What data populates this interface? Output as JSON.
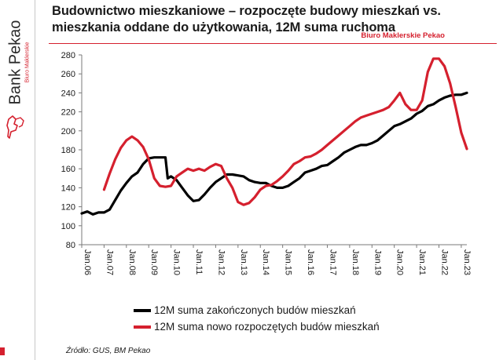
{
  "header": {
    "title_line1": "Budownictwo mieszkaniowe – rozpoczęte budowy mieszkań vs.",
    "title_line2": "mieszkania oddane do użytkowania, 12M suma ruchoma",
    "subbrand": "Biuro Maklerskie Pekao"
  },
  "sidebar": {
    "brand": "Bank Pekao",
    "brand_sub": "Biuro Maklerskie"
  },
  "colors": {
    "black_series": "#000000",
    "red_series": "#d5202e",
    "accent": "#d5202e"
  },
  "footer": {
    "source": "Źródło: GUS, BM Pekao"
  },
  "chart_data": {
    "type": "line",
    "title": "",
    "xlabel": "",
    "ylabel": "",
    "ylim": [
      80,
      280
    ],
    "yticks": [
      80,
      100,
      120,
      140,
      160,
      180,
      200,
      220,
      240,
      260,
      280
    ],
    "xlim": [
      2006.0,
      2023.25
    ],
    "xticks": [
      "Jan.06",
      "Jan.07",
      "Jan.08",
      "Jan.09",
      "Jan.10",
      "Jan.11",
      "Jan.12",
      "Jan.13",
      "Jan.14",
      "Jan.15",
      "Jan.16",
      "Jan.17",
      "Jan.18",
      "Jan.19",
      "Jan.20",
      "Jan.21",
      "Jan.22",
      "Jan.23"
    ],
    "grid": false,
    "legend_position": "bottom",
    "series": [
      {
        "name": "12M suma zakończonych budów mieszkań",
        "color": "#000000",
        "points": [
          [
            2006.0,
            113
          ],
          [
            2006.25,
            115
          ],
          [
            2006.5,
            112
          ],
          [
            2006.75,
            114
          ],
          [
            2007.0,
            114
          ],
          [
            2007.25,
            117
          ],
          [
            2007.5,
            127
          ],
          [
            2007.75,
            137
          ],
          [
            2008.0,
            145
          ],
          [
            2008.25,
            152
          ],
          [
            2008.5,
            156
          ],
          [
            2008.75,
            165
          ],
          [
            2009.0,
            171
          ],
          [
            2009.25,
            172
          ],
          [
            2009.5,
            172
          ],
          [
            2009.75,
            172
          ],
          [
            2009.85,
            150
          ],
          [
            2010.0,
            152
          ],
          [
            2010.25,
            148
          ],
          [
            2010.5,
            140
          ],
          [
            2010.75,
            132
          ],
          [
            2011.0,
            126
          ],
          [
            2011.25,
            127
          ],
          [
            2011.5,
            133
          ],
          [
            2011.75,
            140
          ],
          [
            2012.0,
            146
          ],
          [
            2012.25,
            150
          ],
          [
            2012.5,
            154
          ],
          [
            2012.75,
            154
          ],
          [
            2013.0,
            153
          ],
          [
            2013.25,
            152
          ],
          [
            2013.5,
            148
          ],
          [
            2013.75,
            146
          ],
          [
            2014.0,
            145
          ],
          [
            2014.25,
            145
          ],
          [
            2014.5,
            142
          ],
          [
            2014.75,
            140
          ],
          [
            2015.0,
            140
          ],
          [
            2015.25,
            142
          ],
          [
            2015.5,
            146
          ],
          [
            2015.75,
            150
          ],
          [
            2016.0,
            156
          ],
          [
            2016.25,
            158
          ],
          [
            2016.5,
            160
          ],
          [
            2016.75,
            163
          ],
          [
            2017.0,
            164
          ],
          [
            2017.25,
            168
          ],
          [
            2017.5,
            172
          ],
          [
            2017.75,
            177
          ],
          [
            2018.0,
            180
          ],
          [
            2018.25,
            183
          ],
          [
            2018.5,
            185
          ],
          [
            2018.75,
            185
          ],
          [
            2019.0,
            187
          ],
          [
            2019.25,
            190
          ],
          [
            2019.5,
            195
          ],
          [
            2019.75,
            200
          ],
          [
            2020.0,
            205
          ],
          [
            2020.25,
            207
          ],
          [
            2020.5,
            210
          ],
          [
            2020.75,
            213
          ],
          [
            2021.0,
            218
          ],
          [
            2021.25,
            221
          ],
          [
            2021.5,
            226
          ],
          [
            2021.75,
            228
          ],
          [
            2022.0,
            232
          ],
          [
            2022.25,
            235
          ],
          [
            2022.5,
            237
          ],
          [
            2022.75,
            238
          ],
          [
            2023.0,
            238
          ],
          [
            2023.25,
            240
          ]
        ]
      },
      {
        "name": "12M suma nowo rozpoczętych budów mieszkań",
        "color": "#d5202e",
        "points": [
          [
            2007.0,
            138
          ],
          [
            2007.25,
            155
          ],
          [
            2007.5,
            170
          ],
          [
            2007.75,
            182
          ],
          [
            2008.0,
            190
          ],
          [
            2008.25,
            194
          ],
          [
            2008.5,
            190
          ],
          [
            2008.75,
            183
          ],
          [
            2009.0,
            170
          ],
          [
            2009.25,
            150
          ],
          [
            2009.5,
            142
          ],
          [
            2009.75,
            141
          ],
          [
            2010.0,
            142
          ],
          [
            2010.25,
            152
          ],
          [
            2010.5,
            156
          ],
          [
            2010.75,
            160
          ],
          [
            2011.0,
            158
          ],
          [
            2011.25,
            160
          ],
          [
            2011.5,
            158
          ],
          [
            2011.75,
            162
          ],
          [
            2012.0,
            165
          ],
          [
            2012.25,
            163
          ],
          [
            2012.5,
            150
          ],
          [
            2012.75,
            140
          ],
          [
            2013.0,
            125
          ],
          [
            2013.25,
            122
          ],
          [
            2013.5,
            124
          ],
          [
            2013.75,
            130
          ],
          [
            2014.0,
            138
          ],
          [
            2014.25,
            142
          ],
          [
            2014.5,
            143
          ],
          [
            2014.75,
            147
          ],
          [
            2015.0,
            152
          ],
          [
            2015.25,
            158
          ],
          [
            2015.5,
            165
          ],
          [
            2015.75,
            168
          ],
          [
            2016.0,
            172
          ],
          [
            2016.25,
            173
          ],
          [
            2016.5,
            176
          ],
          [
            2016.75,
            180
          ],
          [
            2017.0,
            185
          ],
          [
            2017.25,
            190
          ],
          [
            2017.5,
            195
          ],
          [
            2017.75,
            200
          ],
          [
            2018.0,
            205
          ],
          [
            2018.25,
            210
          ],
          [
            2018.5,
            214
          ],
          [
            2018.75,
            216
          ],
          [
            2019.0,
            218
          ],
          [
            2019.25,
            220
          ],
          [
            2019.5,
            222
          ],
          [
            2019.75,
            225
          ],
          [
            2020.0,
            232
          ],
          [
            2020.25,
            240
          ],
          [
            2020.5,
            228
          ],
          [
            2020.75,
            222
          ],
          [
            2021.0,
            222
          ],
          [
            2021.25,
            232
          ],
          [
            2021.5,
            262
          ],
          [
            2021.75,
            276
          ],
          [
            2022.0,
            276
          ],
          [
            2022.25,
            268
          ],
          [
            2022.5,
            250
          ],
          [
            2022.75,
            225
          ],
          [
            2023.0,
            198
          ],
          [
            2023.25,
            181
          ]
        ]
      }
    ]
  }
}
